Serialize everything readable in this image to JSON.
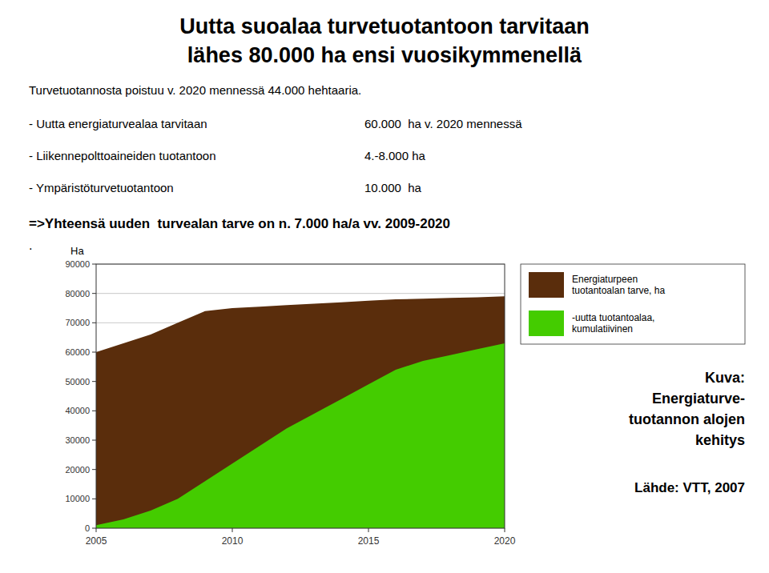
{
  "chart_data": {
    "type": "area",
    "title": "Uutta suoalaa turvetuotantoon tarvitaan\nlähes 80.000 ha ensi vuosikymmenellä",
    "subtitle": "Turvetuotannosta poistuu v. 2020 mennessä 44.000 hehtaaria.",
    "ylabel": "Ha",
    "annotations": [
      "- Uutta energiaturvealaa tarvitaan",
      "60.000  ha v. 2020 mennessä",
      "- Liikennepolttoaineiden tuotantoon",
      "4.-8.000 ha",
      "- Ympäristöturvetuotantoon",
      "10.000  ha",
      "=>Yhteensä uuden  turvealan tarve on n. 7.000 ha/a vv. 2009-2020",
      ".",
      "Kuva:\nEnergiaturve-\ntuotannon alojen\nkehitys",
      "Lähde: VTT, 2007"
    ],
    "x": [
      2005,
      2006,
      2007,
      2008,
      2009,
      2010,
      2011,
      2012,
      2013,
      2014,
      2015,
      2016,
      2017,
      2018,
      2019,
      2020
    ],
    "series": [
      {
        "name": "Energiaturpeen\ntuotantoalan tarve, ha",
        "color": "#5a2d0c",
        "values": [
          60000,
          63000,
          66000,
          70000,
          74000,
          75000,
          75500,
          76000,
          76500,
          77000,
          77500,
          78000,
          78200,
          78500,
          78700,
          79000
        ]
      },
      {
        "name": "-uutta tuotantoalaa,\nkumulatiivinen",
        "color": "#44cc00",
        "values": [
          1000,
          3000,
          6000,
          10000,
          16000,
          22000,
          28000,
          34000,
          39000,
          44000,
          49000,
          54000,
          57000,
          59000,
          61000,
          63000
        ]
      }
    ],
    "xlim": [
      2005,
      2020
    ],
    "xticks": [
      2005,
      2010,
      2015,
      2020
    ],
    "ylim": [
      0,
      90000
    ],
    "yticks": [
      0,
      10000,
      20000,
      30000,
      40000,
      50000,
      60000,
      70000,
      80000,
      90000
    ],
    "grid": true,
    "legend": "right"
  }
}
